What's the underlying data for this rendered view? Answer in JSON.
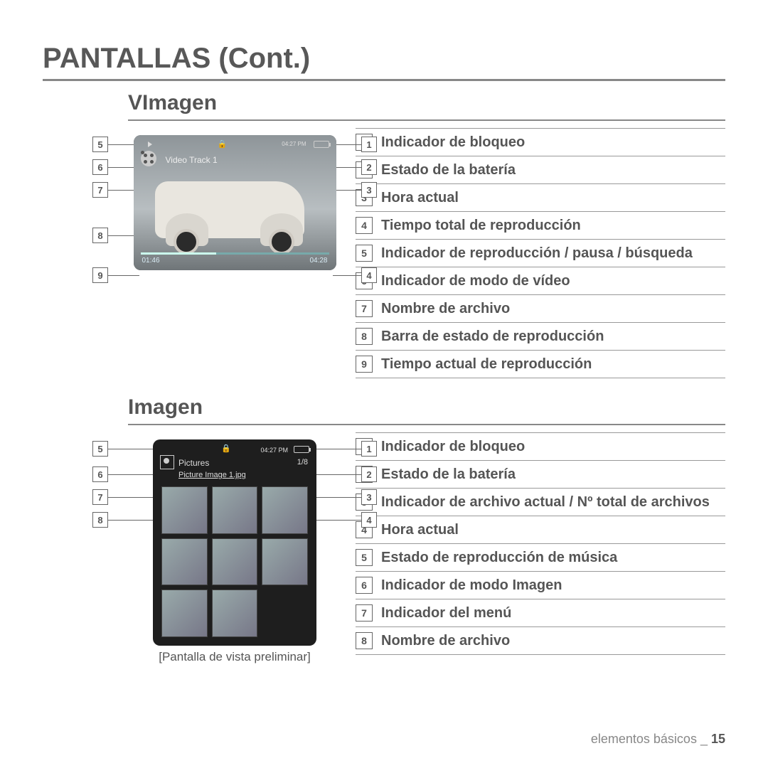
{
  "page": {
    "title": "PANTALLAS (Cont.)",
    "footer_label": "elementos básicos _",
    "footer_page": "15"
  },
  "video_section": {
    "heading": "VImagen",
    "screen": {
      "filename": "Video Track 1",
      "clock": "04:27 PM",
      "elapsed": "01:46",
      "total": "04:28"
    },
    "callouts_left": [
      "5",
      "6",
      "7",
      "8",
      "9"
    ],
    "callouts_right": [
      "1",
      "2",
      "3",
      "4"
    ],
    "legend": [
      {
        "n": "1",
        "t": "Indicador de bloqueo"
      },
      {
        "n": "2",
        "t": "Estado de la batería"
      },
      {
        "n": "3",
        "t": "Hora actual"
      },
      {
        "n": "4",
        "t": "Tiempo total de reproducción"
      },
      {
        "n": "5",
        "t": "Indicador de reproducción / pausa / búsqueda"
      },
      {
        "n": "6",
        "t": "Indicador de modo de vídeo"
      },
      {
        "n": "7",
        "t": "Nombre de archivo"
      },
      {
        "n": "8",
        "t": "Barra de estado de reproducción"
      },
      {
        "n": "9",
        "t": "Tiempo actual de reproducción"
      }
    ]
  },
  "image_section": {
    "heading": "Imagen",
    "caption": "[Pantalla de vista preliminar]",
    "screen": {
      "clock": "04:27 PM",
      "menu": "Pictures",
      "counter": "1/8",
      "filename": "Picture Image 1.jpg"
    },
    "callouts_left": [
      "5",
      "6",
      "7",
      "8"
    ],
    "callouts_right": [
      "1",
      "2",
      "3",
      "4"
    ],
    "legend": [
      {
        "n": "1",
        "t": "Indicador de bloqueo"
      },
      {
        "n": "2",
        "t": "Estado de la batería"
      },
      {
        "n": "3",
        "t": "Indicador de archivo actual / Nº total de archivos"
      },
      {
        "n": "4",
        "t": "Hora actual"
      },
      {
        "n": "5",
        "t": "Estado de reproducción de música"
      },
      {
        "n": "6",
        "t": "Indicador de modo Imagen"
      },
      {
        "n": "7",
        "t": "Indicador del menú"
      },
      {
        "n": "8",
        "t": "Nombre de archivo"
      }
    ]
  },
  "colors": {
    "heading": "#585858",
    "rule": "#888888",
    "text": "#555555"
  }
}
